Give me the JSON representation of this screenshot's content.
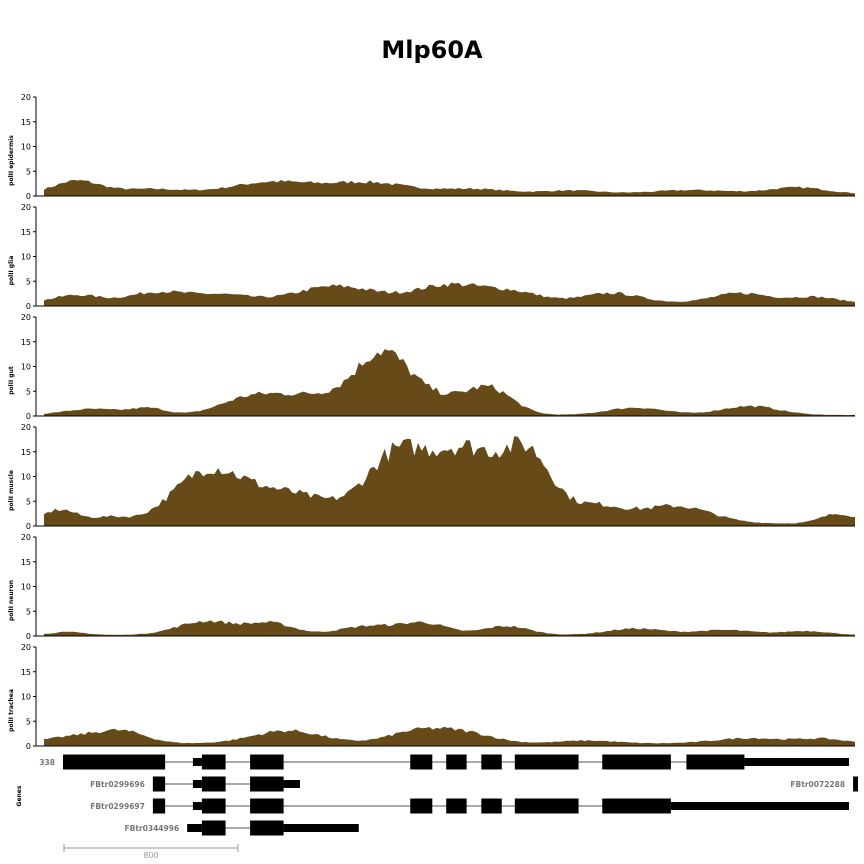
{
  "chart_data": {
    "type": "area",
    "title": "Mlp60A",
    "fill_color": "#664a18",
    "ylim": [
      0,
      20
    ],
    "yticks": [
      0,
      5,
      10,
      15,
      20
    ],
    "x_points": 220,
    "tracks": [
      {
        "name": "polII epidermis",
        "peaks": [
          [
            0.04,
            2.6,
            0.04
          ],
          [
            0.13,
            1.0,
            0.06
          ],
          [
            0.28,
            2.4,
            0.07
          ],
          [
            0.4,
            2.3,
            0.07
          ],
          [
            0.53,
            1.0,
            0.06
          ],
          [
            0.65,
            0.7,
            0.05
          ],
          [
            0.8,
            0.8,
            0.07
          ],
          [
            0.93,
            1.3,
            0.05
          ]
        ],
        "base": 0.4
      },
      {
        "name": "polII glia",
        "peaks": [
          [
            0.04,
            1.6,
            0.04
          ],
          [
            0.14,
            2.2,
            0.05
          ],
          [
            0.22,
            1.6,
            0.05
          ],
          [
            0.36,
            3.4,
            0.07
          ],
          [
            0.5,
            3.6,
            0.06
          ],
          [
            0.58,
            2.0,
            0.05
          ],
          [
            0.7,
            2.0,
            0.05
          ],
          [
            0.86,
            2.0,
            0.05
          ],
          [
            0.95,
            1.2,
            0.04
          ]
        ],
        "base": 0.6
      },
      {
        "name": "polII gut",
        "peaks": [
          [
            0.06,
            1.2,
            0.05
          ],
          [
            0.13,
            1.3,
            0.03
          ],
          [
            0.25,
            3.0,
            0.05
          ],
          [
            0.32,
            3.5,
            0.06
          ],
          [
            0.4,
            5.0,
            0.05
          ],
          [
            0.42,
            6.5,
            0.04
          ],
          [
            0.47,
            4.0,
            0.06
          ],
          [
            0.55,
            5.0,
            0.04
          ],
          [
            0.73,
            1.5,
            0.05
          ],
          [
            0.87,
            1.8,
            0.05
          ]
        ],
        "base": 0.2
      },
      {
        "name": "polII muscle",
        "peaks": [
          [
            0.02,
            2.8,
            0.03
          ],
          [
            0.08,
            1.2,
            0.03
          ],
          [
            0.2,
            9.8,
            0.06
          ],
          [
            0.3,
            6.0,
            0.08
          ],
          [
            0.43,
            11.5,
            0.05
          ],
          [
            0.52,
            15.0,
            0.07
          ],
          [
            0.6,
            11.0,
            0.04
          ],
          [
            0.68,
            3.5,
            0.05
          ],
          [
            0.78,
            3.5,
            0.06
          ],
          [
            0.98,
            2.0,
            0.03
          ]
        ],
        "base": 0.5
      },
      {
        "name": "polII neuron",
        "peaks": [
          [
            0.03,
            0.6,
            0.03
          ],
          [
            0.2,
            2.8,
            0.05
          ],
          [
            0.28,
            2.3,
            0.04
          ],
          [
            0.4,
            1.8,
            0.05
          ],
          [
            0.47,
            2.3,
            0.04
          ],
          [
            0.57,
            1.8,
            0.04
          ],
          [
            0.73,
            1.3,
            0.05
          ],
          [
            0.84,
            1.0,
            0.05
          ],
          [
            0.94,
            0.8,
            0.04
          ]
        ],
        "base": 0.2
      },
      {
        "name": "polII trachea",
        "peaks": [
          [
            0.05,
            1.6,
            0.06
          ],
          [
            0.1,
            1.8,
            0.04
          ],
          [
            0.3,
            2.6,
            0.06
          ],
          [
            0.46,
            2.4,
            0.05
          ],
          [
            0.52,
            2.0,
            0.05
          ],
          [
            0.67,
            0.6,
            0.05
          ],
          [
            0.87,
            1.1,
            0.06
          ],
          [
            0.96,
            0.9,
            0.04
          ]
        ],
        "base": 0.5
      }
    ],
    "genes_label": "Genes",
    "gene_x_range": [
      0,
      1000
    ],
    "transcripts": [
      {
        "label": "338",
        "span": [
          30,
          992
        ],
        "blocks": [
          [
            30,
            155,
            "tall"
          ],
          [
            189,
            200,
            "short"
          ],
          [
            200,
            229,
            "tall"
          ],
          [
            259,
            300,
            "tall"
          ],
          [
            455,
            482,
            "tall"
          ],
          [
            499,
            524,
            "tall"
          ],
          [
            542,
            567,
            "tall"
          ],
          [
            583,
            661,
            "tall"
          ],
          [
            690,
            774,
            "tall"
          ],
          [
            793,
            864,
            "tall"
          ],
          [
            864,
            992,
            "short"
          ]
        ]
      },
      {
        "label": "FBtr0299696",
        "span": [
          140,
          320
        ],
        "blocks": [
          [
            140,
            155,
            "tall"
          ],
          [
            189,
            200,
            "short"
          ],
          [
            200,
            229,
            "tall"
          ],
          [
            259,
            300,
            "tall"
          ],
          [
            300,
            320,
            "short"
          ]
        ]
      },
      {
        "label": "FBtr0299697",
        "span": [
          140,
          992
        ],
        "blocks": [
          [
            140,
            155,
            "tall"
          ],
          [
            189,
            200,
            "short"
          ],
          [
            200,
            229,
            "tall"
          ],
          [
            259,
            300,
            "tall"
          ],
          [
            455,
            482,
            "tall"
          ],
          [
            499,
            524,
            "tall"
          ],
          [
            542,
            567,
            "tall"
          ],
          [
            583,
            661,
            "tall"
          ],
          [
            690,
            774,
            "tall"
          ],
          [
            774,
            992,
            "short"
          ]
        ]
      },
      {
        "label": "FBtr0344996",
        "span": [
          182,
          392
        ],
        "blocks": [
          [
            182,
            200,
            "short"
          ],
          [
            200,
            229,
            "tall"
          ],
          [
            259,
            300,
            "tall"
          ],
          [
            300,
            392,
            "short"
          ]
        ]
      },
      {
        "label": "FBtr0072288",
        "span": [
          997,
          1003
        ],
        "blocks": [
          [
            997,
            1003,
            "tall"
          ]
        ]
      }
    ],
    "scale_bar": {
      "label": "800",
      "span_units": 800
    }
  }
}
